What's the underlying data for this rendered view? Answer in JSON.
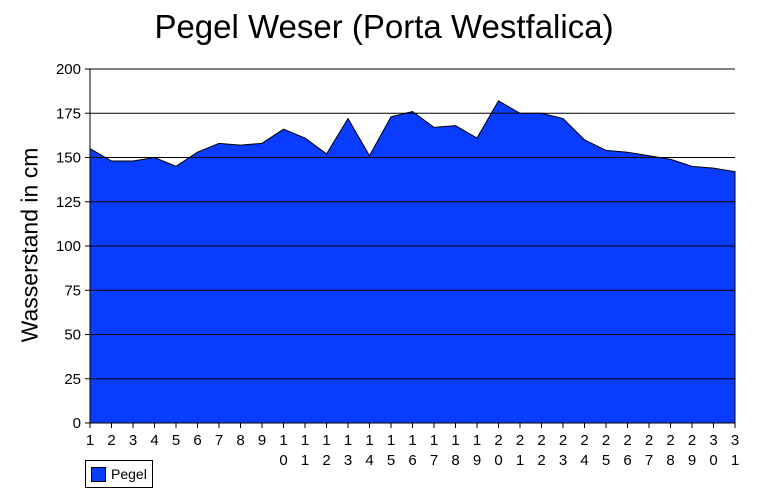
{
  "chart_data": {
    "type": "area",
    "title": "Pegel Weser (Porta Westfalica)",
    "ylabel": "Wasserstand in cm",
    "xlabel": "",
    "ylim": [
      0,
      200
    ],
    "yticks": [
      0,
      25,
      50,
      75,
      100,
      125,
      150,
      175,
      200
    ],
    "categories": [
      "1",
      "2",
      "3",
      "4",
      "5",
      "6",
      "7",
      "8",
      "9",
      "10",
      "11",
      "12",
      "13",
      "14",
      "15",
      "16",
      "17",
      "18",
      "19",
      "20",
      "21",
      "22",
      "23",
      "24",
      "25",
      "26",
      "27",
      "28",
      "29",
      "30",
      "31"
    ],
    "series": [
      {
        "name": "Pegel",
        "color": "#0a3cff",
        "values": [
          155,
          148,
          148,
          150,
          145,
          153,
          158,
          157,
          158,
          166,
          161,
          152,
          172,
          151,
          173,
          176,
          167,
          168,
          161,
          182,
          175,
          175,
          172,
          160,
          154,
          153,
          151,
          149,
          145,
          144,
          142
        ]
      }
    ],
    "grid": "horizontal",
    "legend": "bottom-left"
  }
}
